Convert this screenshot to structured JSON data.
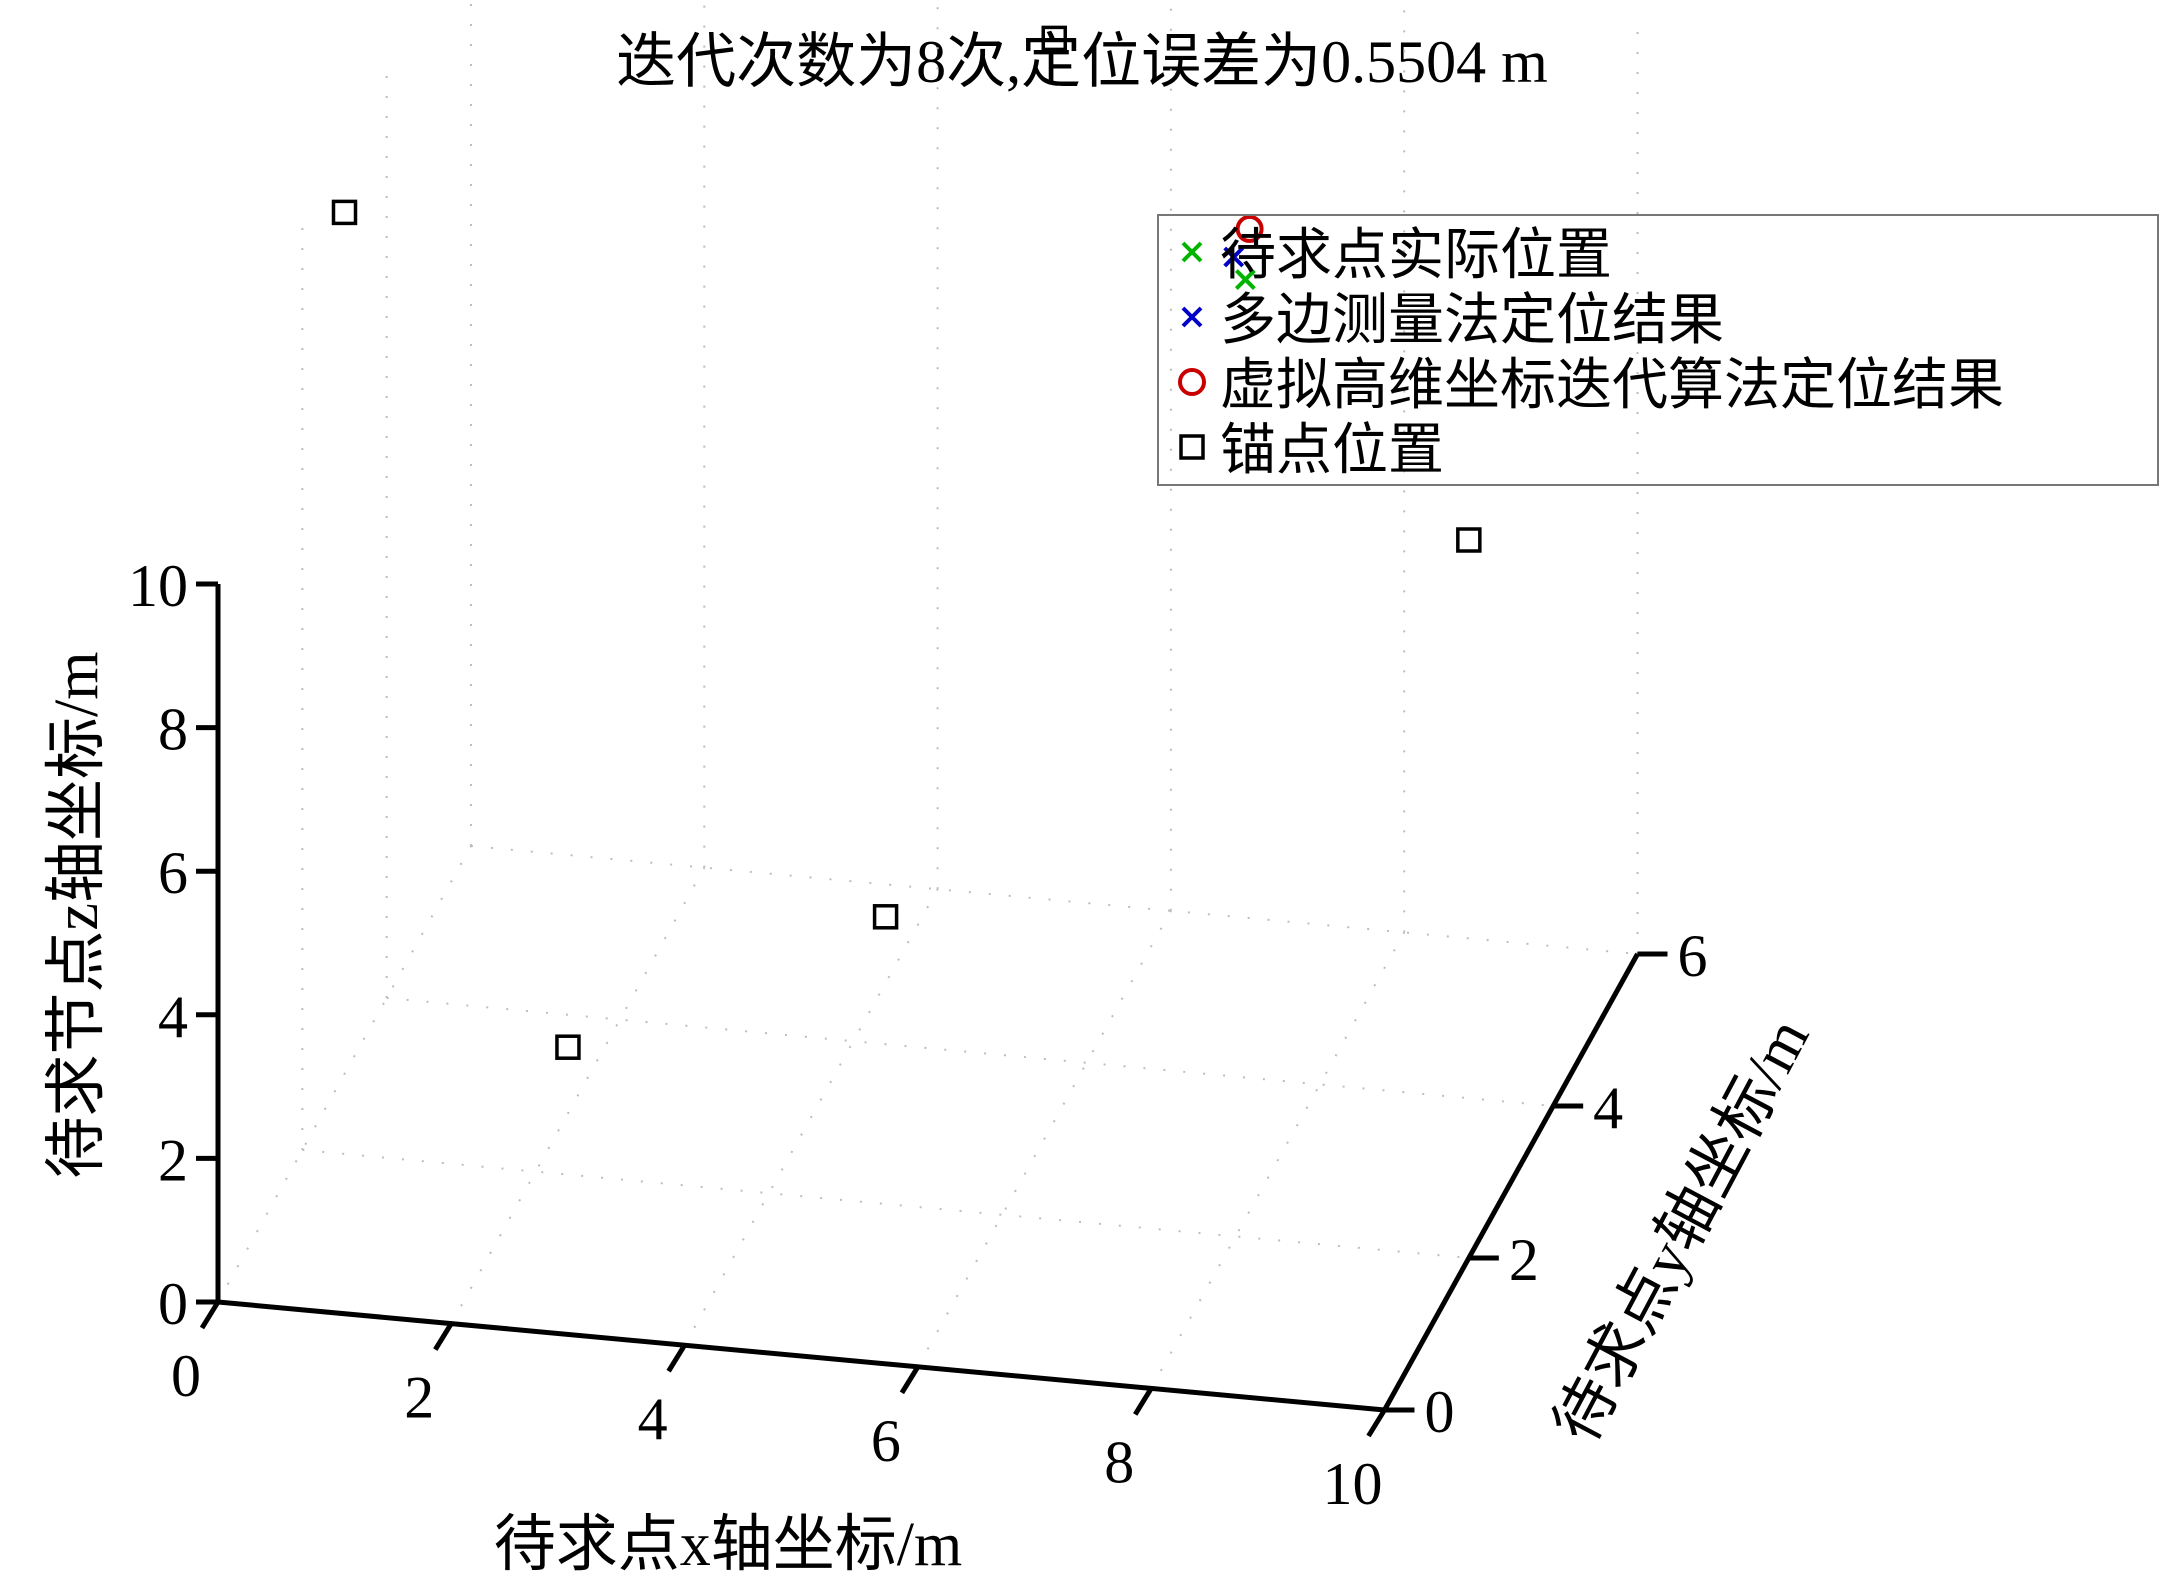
{
  "chart_data": {
    "type": "scatter",
    "title": "迭代次数为8次,定位误差为0.5504 m",
    "xlabel": "待求点x轴坐标/m",
    "ylabel": "待求点y轴坐标/m",
    "zlabel": "待求节点z轴坐标/m",
    "xlim": [
      0,
      10
    ],
    "ylim": [
      0,
      6
    ],
    "zlim": [
      0,
      10
    ],
    "xticks": [
      "0",
      "2",
      "4",
      "6",
      "8",
      "10"
    ],
    "yticks": [
      "0",
      "2",
      "4",
      "6"
    ],
    "zticks": [
      "0",
      "2",
      "4",
      "6",
      "8",
      "10"
    ],
    "grid": true,
    "legend_position": "top-right",
    "series": [
      {
        "name": "待求点实际位置",
        "marker": "x",
        "color": "#00b400",
        "points": [
          [
            7,
            5,
            10
          ]
        ]
      },
      {
        "name": "多边测量法定位结果",
        "marker": "x",
        "color": "#0000c8",
        "points": [
          [
            6.9,
            5.0,
            10.3
          ]
        ]
      },
      {
        "name": "虚拟高维坐标迭代算法定位结果",
        "marker": "o",
        "color": "#c80000",
        "points": [
          [
            7.0,
            5.1,
            10.6
          ]
        ]
      },
      {
        "name": "锚点位置",
        "marker": "square",
        "color": "#000000",
        "points": [
          [
            0,
            3,
            12
          ],
          [
            10,
            2,
            10
          ],
          [
            3,
            0,
            4
          ],
          [
            5,
            2,
            4
          ],
          [
            5,
            6,
            12
          ]
        ]
      }
    ]
  }
}
